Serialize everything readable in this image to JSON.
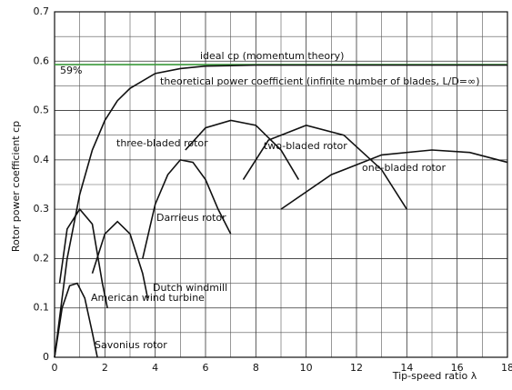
{
  "chart_data": {
    "type": "line",
    "xlabel": "Tip-speed ratio λ",
    "ylabel": "Rotor power coefficient cp",
    "xlim": [
      0,
      18
    ],
    "ylim": [
      0,
      0.7
    ],
    "xticks": [
      0,
      2,
      4,
      6,
      8,
      10,
      12,
      14,
      16,
      18
    ],
    "yticks": [
      0,
      0.1,
      0.2,
      0.3,
      0.4,
      0.5,
      0.6,
      0.7
    ],
    "xgrid": [
      1,
      3,
      5,
      7,
      9,
      11,
      13,
      15,
      17
    ],
    "ygrid": [
      0.05,
      0.15,
      0.25,
      0.35,
      0.45,
      0.55,
      0.65
    ],
    "grid": true,
    "series": [
      {
        "name": "ideal cp (momentum theory)",
        "color": "#3a9a3a",
        "x": [
          0,
          18
        ],
        "values": [
          0.593,
          0.593
        ]
      },
      {
        "name": "theoretical power coefficient (infinite number of blades, L/D=∞)",
        "color": "#111111",
        "x": [
          0,
          0.5,
          1,
          1.5,
          2,
          2.5,
          3,
          4,
          5,
          6,
          8,
          12,
          18
        ],
        "values": [
          0,
          0.2,
          0.33,
          0.42,
          0.48,
          0.52,
          0.545,
          0.575,
          0.585,
          0.59,
          0.592,
          0.592,
          0.592
        ]
      },
      {
        "name": "Savonius rotor",
        "color": "#111111",
        "x": [
          0,
          0.3,
          0.6,
          0.9,
          1.2,
          1.5,
          1.7
        ],
        "values": [
          0,
          0.1,
          0.145,
          0.15,
          0.12,
          0.05,
          0
        ]
      },
      {
        "name": "American wind turbine",
        "color": "#111111",
        "x": [
          0.2,
          0.5,
          1,
          1.5,
          1.9,
          2.1
        ],
        "values": [
          0.15,
          0.26,
          0.3,
          0.27,
          0.15,
          0.1
        ]
      },
      {
        "name": "Dutch windmill",
        "color": "#111111",
        "x": [
          1.5,
          2,
          2.5,
          3,
          3.5,
          3.7
        ],
        "values": [
          0.17,
          0.25,
          0.275,
          0.25,
          0.17,
          0.12
        ]
      },
      {
        "name": "Darrieus rotor",
        "color": "#111111",
        "x": [
          3.5,
          4,
          4.5,
          5,
          5.5,
          6,
          6.5,
          7
        ],
        "values": [
          0.2,
          0.31,
          0.37,
          0.4,
          0.395,
          0.36,
          0.3,
          0.25
        ]
      },
      {
        "name": "three-bladed rotor",
        "color": "#111111",
        "x": [
          5.2,
          6,
          7,
          8,
          9,
          9.7
        ],
        "values": [
          0.42,
          0.465,
          0.48,
          0.47,
          0.42,
          0.36
        ]
      },
      {
        "name": "two-bladed rotor",
        "color": "#111111",
        "x": [
          7.5,
          8.5,
          10,
          11.5,
          13,
          14
        ],
        "values": [
          0.36,
          0.44,
          0.47,
          0.45,
          0.38,
          0.3
        ]
      },
      {
        "name": "one-bladed rotor",
        "color": "#111111",
        "x": [
          9,
          11,
          13,
          15,
          16.5,
          18
        ],
        "values": [
          0.3,
          0.37,
          0.41,
          0.42,
          0.415,
          0.395
        ]
      }
    ],
    "annotations": [
      "59%"
    ]
  }
}
